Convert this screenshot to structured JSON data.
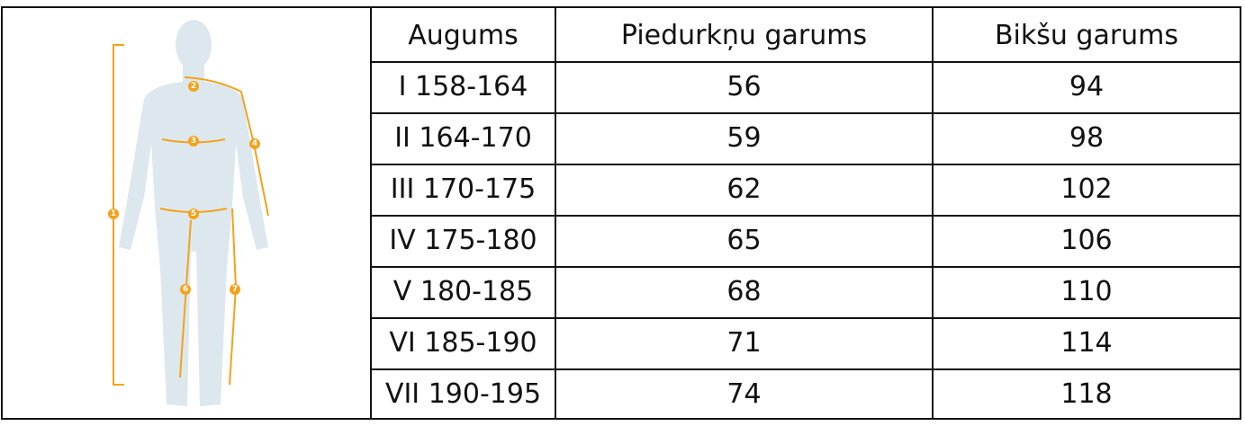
{
  "table": {
    "header": [
      "Augums",
      "Piedurkņu garums",
      "Bikšu garums"
    ],
    "rows": [
      [
        "I 158-164",
        56,
        94
      ],
      [
        "II 164-170",
        59,
        98
      ],
      [
        "III 170-175",
        62,
        102
      ],
      [
        "IV 175-180",
        65,
        106
      ],
      [
        "V 180-185",
        68,
        110
      ],
      [
        "VI 185-190",
        71,
        114
      ],
      [
        "VII 190-195",
        74,
        118
      ]
    ]
  },
  "figure": {
    "markers": [
      "1",
      "2",
      "3",
      "4",
      "5",
      "6",
      "7"
    ]
  }
}
